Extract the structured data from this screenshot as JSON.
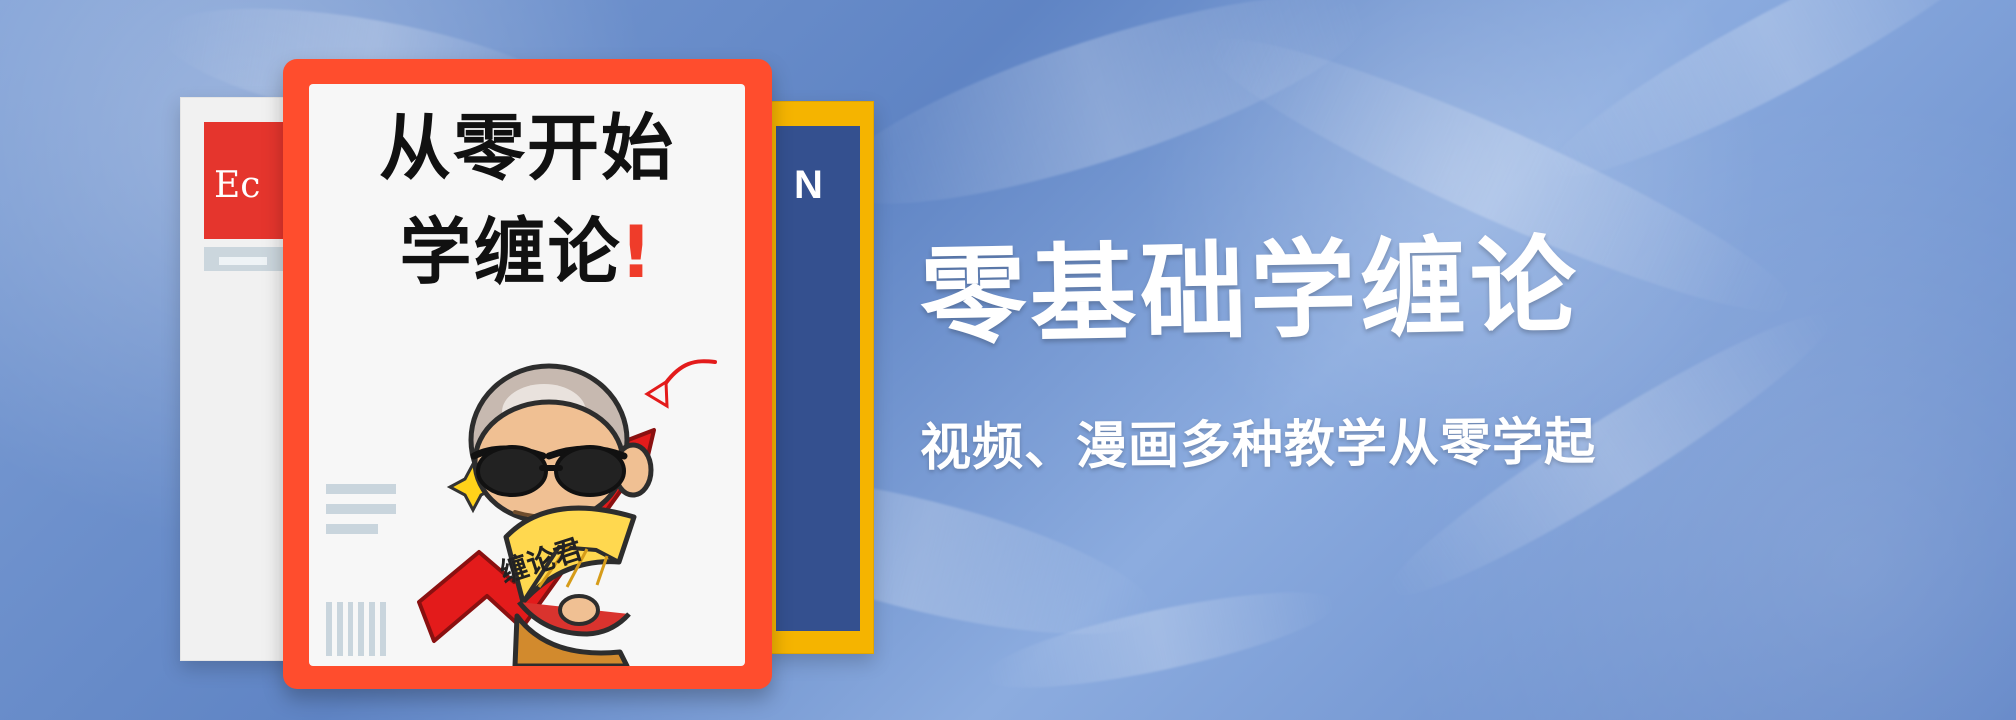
{
  "left_book": {
    "label": "Ec"
  },
  "right_book": {
    "label": "N"
  },
  "cover": {
    "line1": "从零开始",
    "line2_prefix": "学",
    "line2_highlight": "缠",
    "line2_suffix": "论",
    "line2_exclamation": "!"
  },
  "fan": {
    "label": "缠论君"
  },
  "hero": {
    "title": "零基础学缠论",
    "subtitle": "视频、漫画多种教学从零学起"
  },
  "colors": {
    "cover_red": "#ff4d2d",
    "book_yellow": "#f5b400",
    "book_blue": "#34508f",
    "background_blue": "#6f92cb",
    "title_white": "#ffffff"
  }
}
